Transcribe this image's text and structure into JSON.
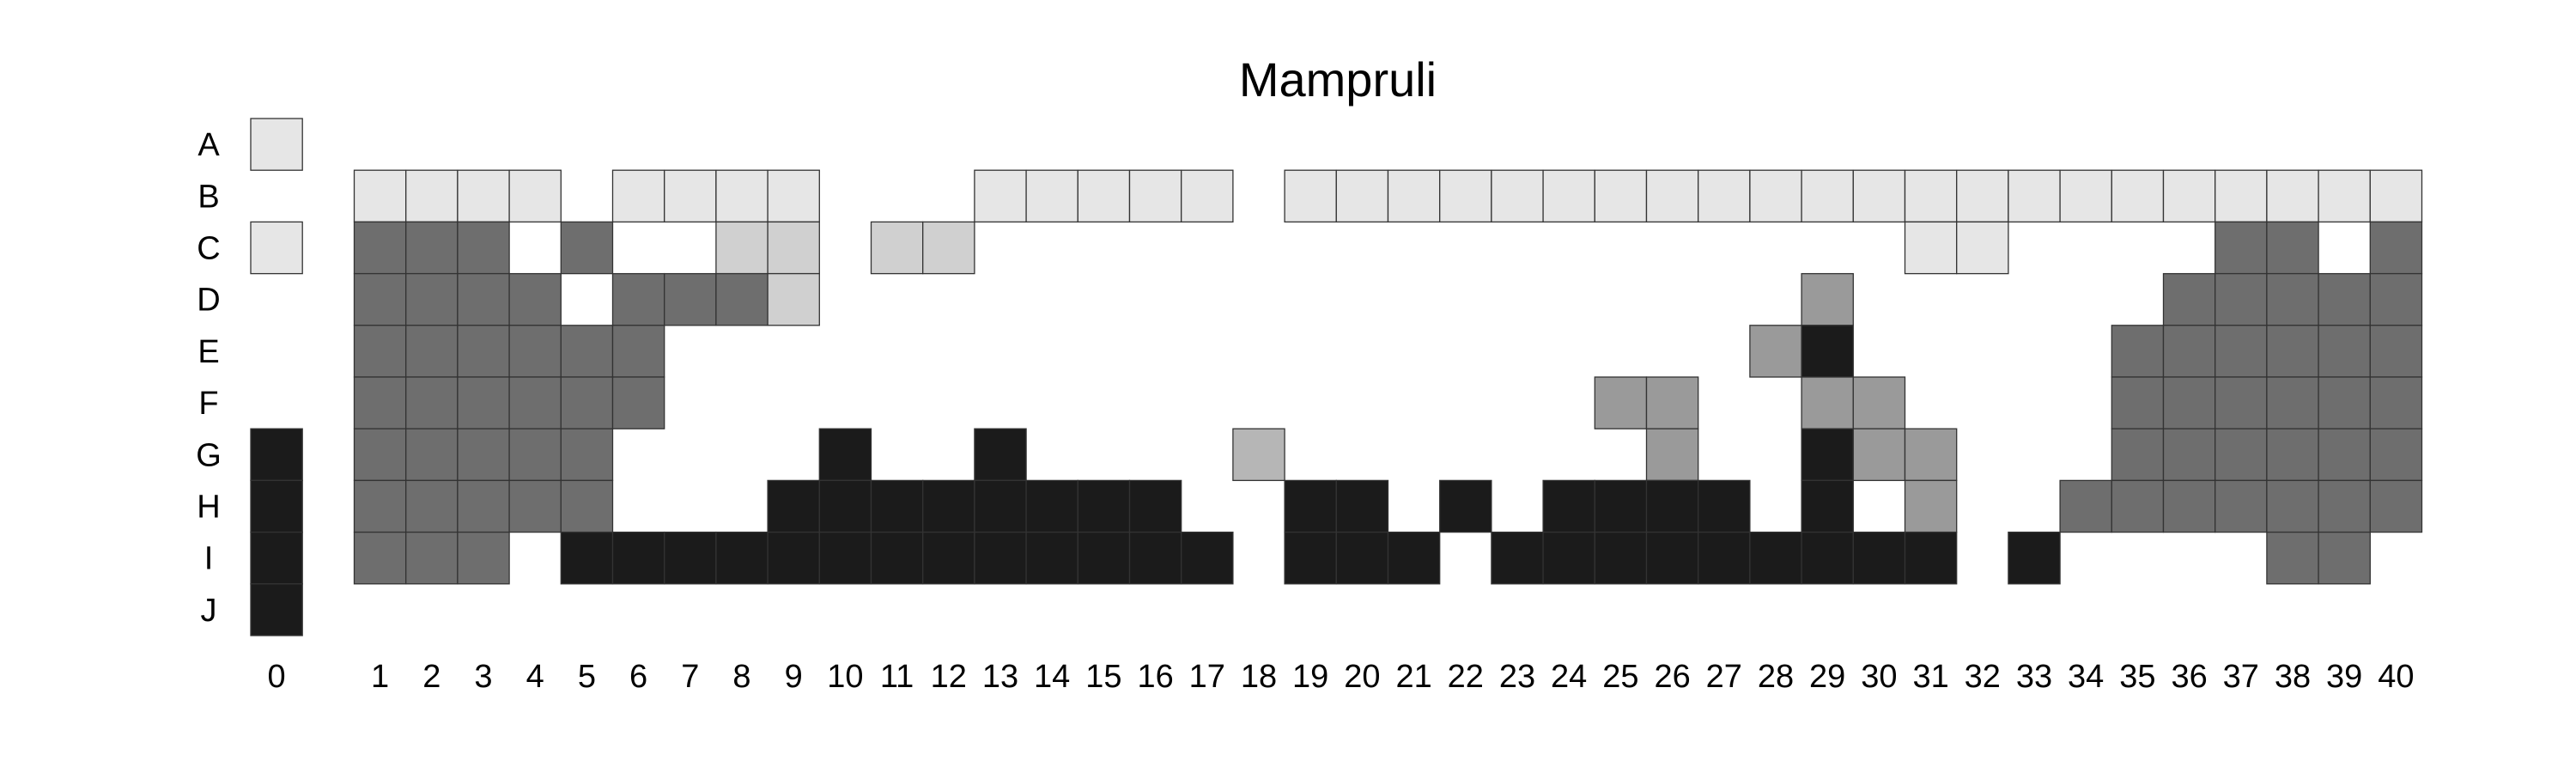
{
  "chart_data": {
    "type": "heatmap",
    "title": "Mampruli",
    "xlabel": "",
    "ylabel": "",
    "rows": [
      "A",
      "B",
      "C",
      "D",
      "E",
      "F",
      "G",
      "H",
      "I",
      "J"
    ],
    "columns": [
      "0",
      "1",
      "2",
      "3",
      "4",
      "5",
      "6",
      "7",
      "8",
      "9",
      "10",
      "11",
      "12",
      "13",
      "14",
      "15",
      "16",
      "17",
      "18",
      "19",
      "20",
      "21",
      "22",
      "23",
      "24",
      "25",
      "26",
      "27",
      "28",
      "29",
      "30",
      "31",
      "32",
      "33",
      "34",
      "35",
      "36",
      "37",
      "38",
      "39",
      "40"
    ],
    "levels": {
      "L": "#e6e6e6",
      "S": "#d0d0d0",
      "T": "#b6b6b6",
      "M": "#9a9a9a",
      "D": "#6e6e6e",
      "K": "#1b1b1b"
    },
    "grid": [
      "L........................................",
      ".LLLL.LLLL...LLLLL.LLLLLLLLLLLLLLLLLLLLLL",
      "LDDD.D..SS.SS..................LL....DD.D",
      ".DDDD.DDDS...................M......DDDDD",
      ".DDDDDD.....................MK.....DDDDDD",
      ".DDDDDD..................MM..MM....DDDDDD",
      "KDDDDD....K..K....T.......M..KMM...DDDDDD",
      "KDDDDD...KKKKKKKK..KK.K.KKKK.K.M..DDDDDDD",
      "KDDD.KKKKKKKKKKKKK.KKK.KKKKKKKKK.K....DD.",
      "K........................................"
    ]
  }
}
